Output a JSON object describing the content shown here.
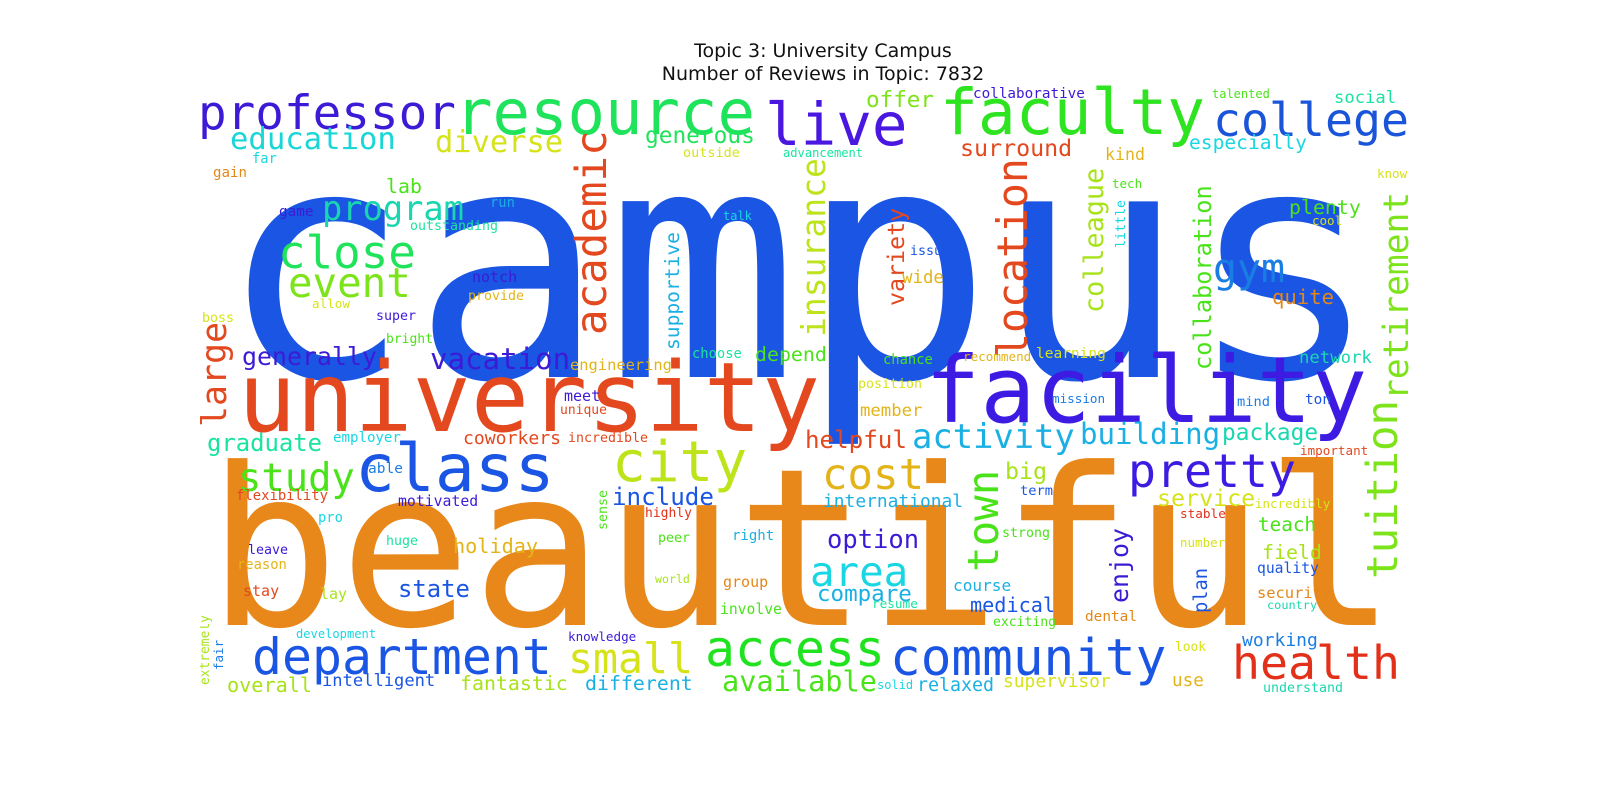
{
  "title": "Topic 3: University Campus",
  "subtitle": "Number of Reviews in Topic: 7832",
  "words": [
    {
      "text": "campus",
      "color": "#1a55e3"
    },
    {
      "text": "beautiful",
      "color": "#e8871a"
    },
    {
      "text": "university",
      "color": "#e3481e"
    },
    {
      "text": "facility",
      "color": "#3d1be3"
    },
    {
      "text": "resource",
      "color": "#1fe35a"
    },
    {
      "text": "faculty",
      "color": "#2ee31f"
    },
    {
      "text": "live",
      "color": "#4a17e0"
    },
    {
      "text": "professor",
      "color": "#3d1bd6"
    },
    {
      "text": "college",
      "color": "#1a55d9"
    },
    {
      "text": "class",
      "color": "#1a55e3"
    },
    {
      "text": "city",
      "color": "#bde31a"
    },
    {
      "text": "department",
      "color": "#1a55e3"
    },
    {
      "text": "community",
      "color": "#1a55e3"
    },
    {
      "text": "access",
      "color": "#1fe31f"
    },
    {
      "text": "health",
      "color": "#e3301a"
    },
    {
      "text": "pretty",
      "color": "#3d1be3"
    },
    {
      "text": "academic",
      "color": "#e3481e"
    },
    {
      "text": "education",
      "color": "#1ad6d6"
    },
    {
      "text": "diverse",
      "color": "#d6e31a"
    },
    {
      "text": "program",
      "color": "#1ad6b0"
    },
    {
      "text": "close",
      "color": "#1fe35a"
    },
    {
      "text": "event",
      "color": "#7de31a"
    },
    {
      "text": "gym",
      "color": "#1a7de3"
    },
    {
      "text": "area",
      "color": "#1ad6e3"
    },
    {
      "text": "small",
      "color": "#d6e31a"
    },
    {
      "text": "cost",
      "color": "#e3b41a"
    },
    {
      "text": "study",
      "color": "#4ae31a"
    },
    {
      "text": "town",
      "color": "#4ae31a"
    },
    {
      "text": "location",
      "color": "#e3481e"
    },
    {
      "text": "insurance",
      "color": "#bde31a"
    },
    {
      "text": "tuition",
      "color": "#7de31a"
    },
    {
      "text": "retirement",
      "color": "#7de31a"
    },
    {
      "text": "colleague",
      "color": "#a8e31a"
    },
    {
      "text": "collaboration",
      "color": "#4ae31a"
    },
    {
      "text": "activity",
      "color": "#1ab0e3"
    },
    {
      "text": "building",
      "color": "#1ab0e3"
    },
    {
      "text": "package",
      "color": "#1ad6b0"
    },
    {
      "text": "generally",
      "color": "#3d1bd6"
    },
    {
      "text": "vacation",
      "color": "#3d1bd6"
    },
    {
      "text": "large",
      "color": "#e3481e"
    },
    {
      "text": "graduate",
      "color": "#1ae3a0"
    },
    {
      "text": "include",
      "color": "#1a55e3"
    },
    {
      "text": "option",
      "color": "#3d1bd6"
    },
    {
      "text": "course",
      "color": "#1ab0e3"
    },
    {
      "text": "compare",
      "color": "#1ab0e3"
    },
    {
      "text": "medical",
      "color": "#1a55e3"
    },
    {
      "text": "state",
      "color": "#1a55e3"
    },
    {
      "text": "available",
      "color": "#4ae31a"
    },
    {
      "text": "helpful",
      "color": "#e3481e"
    },
    {
      "text": "surround",
      "color": "#e3481e"
    },
    {
      "text": "generous",
      "color": "#1fe35a"
    },
    {
      "text": "offer",
      "color": "#7de31a"
    },
    {
      "text": "supportive",
      "color": "#1ab0e3"
    },
    {
      "text": "variety",
      "color": "#e3481e"
    },
    {
      "text": "enjoy",
      "color": "#3d1bd6"
    },
    {
      "text": "big",
      "color": "#a8e31a"
    },
    {
      "text": "service",
      "color": "#d6e31a"
    },
    {
      "text": "teach",
      "color": "#4ae31a"
    },
    {
      "text": "field",
      "color": "#a8e31a"
    },
    {
      "text": "plenty",
      "color": "#4ae31a"
    },
    {
      "text": "quite",
      "color": "#e3871a"
    },
    {
      "text": "especially",
      "color": "#1ad6e3"
    },
    {
      "text": "social",
      "color": "#1ae3a0"
    },
    {
      "text": "collaborative",
      "color": "#3d1bd6"
    },
    {
      "text": "talented",
      "color": "#4ae31a"
    },
    {
      "text": "kind",
      "color": "#e3b41a"
    },
    {
      "text": "depend",
      "color": "#4ae31a"
    },
    {
      "text": "holiday",
      "color": "#e3b41a"
    },
    {
      "text": "international",
      "color": "#1ab0e3"
    },
    {
      "text": "coworkers",
      "color": "#e3481e"
    },
    {
      "text": "lab",
      "color": "#4ae31a"
    },
    {
      "text": "fantastic",
      "color": "#a8e31a"
    },
    {
      "text": "different",
      "color": "#1ab0e3"
    },
    {
      "text": "intelligent",
      "color": "#1a55e3"
    },
    {
      "text": "overall",
      "color": "#a8e31a"
    },
    {
      "text": "relaxed",
      "color": "#1ab0e3"
    },
    {
      "text": "supervisor",
      "color": "#d6e31a"
    },
    {
      "text": "use",
      "color": "#e3b41a"
    },
    {
      "text": "understand",
      "color": "#1ad6b0"
    },
    {
      "text": "working",
      "color": "#1a7de3"
    },
    {
      "text": "network",
      "color": "#1ad6b0"
    },
    {
      "text": "plan",
      "color": "#1a55e3"
    },
    {
      "text": "security",
      "color": "#e3871a"
    },
    {
      "text": "quality",
      "color": "#1a55e3"
    },
    {
      "text": "dental",
      "color": "#e3871a"
    },
    {
      "text": "exciting",
      "color": "#4ae31a"
    },
    {
      "text": "resume",
      "color": "#1ae3a0"
    },
    {
      "text": "involve",
      "color": "#4ae31a"
    },
    {
      "text": "group",
      "color": "#e3871a"
    },
    {
      "text": "world",
      "color": "#a8e31a"
    },
    {
      "text": "right",
      "color": "#1ab0e3"
    },
    {
      "text": "peer",
      "color": "#4ae31a"
    },
    {
      "text": "strong",
      "color": "#4ae31a"
    },
    {
      "text": "number",
      "color": "#d6e31a"
    },
    {
      "text": "stable",
      "color": "#e3301a"
    },
    {
      "text": "incredibly",
      "color": "#d6e31a"
    },
    {
      "text": "important",
      "color": "#e3481e"
    },
    {
      "text": "term",
      "color": "#1a55e3"
    },
    {
      "text": "mind",
      "color": "#1a7de3"
    },
    {
      "text": "ton",
      "color": "#1a55e3"
    },
    {
      "text": "mission",
      "color": "#1a7de3"
    },
    {
      "text": "member",
      "color": "#e3b41a"
    },
    {
      "text": "position",
      "color": "#d6e31a"
    },
    {
      "text": "chance",
      "color": "#4ae31a"
    },
    {
      "text": "recommend",
      "color": "#e3b41a"
    },
    {
      "text": "learning",
      "color": "#d6e31a"
    },
    {
      "text": "issue",
      "color": "#1a55e3"
    },
    {
      "text": "wide",
      "color": "#e3b41a"
    },
    {
      "text": "little",
      "color": "#1ad6e3"
    },
    {
      "text": "cool",
      "color": "#d6e31a"
    },
    {
      "text": "tech",
      "color": "#4ae31a"
    },
    {
      "text": "know",
      "color": "#d6e31a"
    },
    {
      "text": "outside",
      "color": "#d6e31a"
    },
    {
      "text": "advancement",
      "color": "#1ae3a0"
    },
    {
      "text": "far",
      "color": "#1ad6e3"
    },
    {
      "text": "gain",
      "color": "#e3871a"
    },
    {
      "text": "game",
      "color": "#3d1bd6"
    },
    {
      "text": "run",
      "color": "#1ab0e3"
    },
    {
      "text": "outstanding",
      "color": "#1ae3a0"
    },
    {
      "text": "talk",
      "color": "#1ad6e3"
    },
    {
      "text": "notch",
      "color": "#3d1bd6"
    },
    {
      "text": "provide",
      "color": "#e3b41a"
    },
    {
      "text": "allow",
      "color": "#d6e31a"
    },
    {
      "text": "boss",
      "color": "#d6e31a"
    },
    {
      "text": "super",
      "color": "#3d1bd6"
    },
    {
      "text": "bright",
      "color": "#4ae31a"
    },
    {
      "text": "choose",
      "color": "#1ae3a0"
    },
    {
      "text": "engineering",
      "color": "#e3b41a"
    },
    {
      "text": "meet",
      "color": "#3d1bd6"
    },
    {
      "text": "unique",
      "color": "#e3481e"
    },
    {
      "text": "incredible",
      "color": "#e3481e"
    },
    {
      "text": "employer",
      "color": "#1ad6e3"
    },
    {
      "text": "able",
      "color": "#1a7de3"
    },
    {
      "text": "flexibility",
      "color": "#e3481e"
    },
    {
      "text": "motivated",
      "color": "#3d1bd6"
    },
    {
      "text": "highly",
      "color": "#e3301a"
    },
    {
      "text": "sense",
      "color": "#4ae31a"
    },
    {
      "text": "pro",
      "color": "#1ad6e3"
    },
    {
      "text": "leave",
      "color": "#3d1bd6"
    },
    {
      "text": "huge",
      "color": "#1ae3a0"
    },
    {
      "text": "reason",
      "color": "#e3b41a"
    },
    {
      "text": "stay",
      "color": "#e3481e"
    },
    {
      "text": "lay",
      "color": "#a8e31a"
    },
    {
      "text": "extremely",
      "color": "#a8e31a"
    },
    {
      "text": "fair",
      "color": "#1a7de3"
    },
    {
      "text": "development",
      "color": "#1ad6e3"
    },
    {
      "text": "knowledge",
      "color": "#3d1bd6"
    },
    {
      "text": "country",
      "color": "#1ad6b0"
    },
    {
      "text": "look",
      "color": "#d6e31a"
    },
    {
      "text": "solid",
      "color": "#1ad6e3"
    }
  ]
}
